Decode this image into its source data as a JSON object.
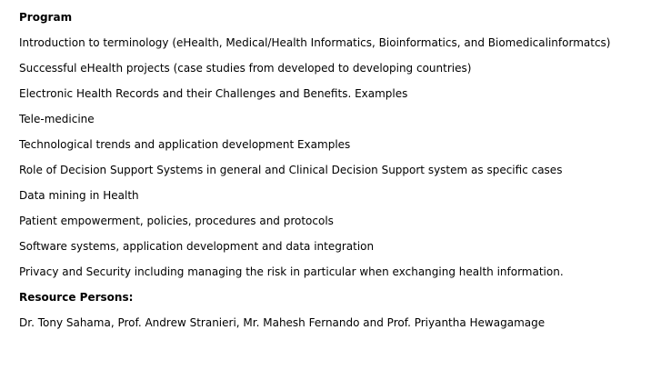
{
  "program": {
    "heading": "Program",
    "items": [
      "Introduction to terminology (eHealth, Medical/Health Informatics, Bioinformatics, and Biomedicalinformatcs)",
      "Successful eHealth projects (case studies from developed to developing countries)",
      "Electronic Health Records and their Challenges and Benefits. Examples",
      "Tele-medicine",
      "Technological trends and application development Examples",
      "Role of Decision Support Systems in general and Clinical Decision Support system as specific cases",
      "Data mining in Health",
      "Patient empowerment, policies, procedures and protocols",
      "Software systems, application development and data integration",
      "Privacy and Security including managing the risk in particular when exchanging health information."
    ]
  },
  "resource": {
    "heading": "Resource Persons:",
    "text": "Dr. Tony Sahama, Prof. Andrew Stranieri, Mr. Mahesh Fernando and Prof. Priyantha Hewagamage"
  }
}
